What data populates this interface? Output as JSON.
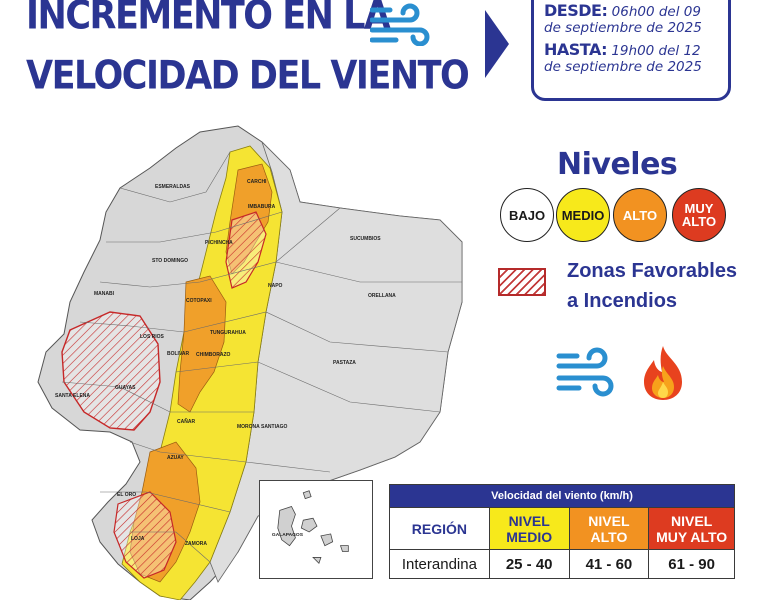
{
  "header": {
    "title_line1": "INCREMENTO EN LA",
    "title_line2": "VELOCIDAD DEL VIENTO",
    "title_icon": "wind-icon"
  },
  "validity": {
    "from_label": "DESDE:",
    "from_value_1": " 06h00 del 09",
    "from_value_2": "de septiembre de 2025",
    "to_label": "HASTA:",
    "to_value_1": " 19h00 del 12",
    "to_value_2": "de septiembre de 2025"
  },
  "legend": {
    "title": "Niveles",
    "levels": [
      {
        "label": "BAJO",
        "color": "#ffffff"
      },
      {
        "label": "MEDIO",
        "color": "#f7e91b"
      },
      {
        "label": "ALTO",
        "color": "#f29221"
      },
      {
        "label": "MUY ALTO",
        "color": "#dd3b20"
      }
    ],
    "fire_zones_line1": "Zonas Favorables",
    "fire_zones_line2": "a Incendios",
    "icons": [
      "wind-icon",
      "fire-icon"
    ]
  },
  "map": {
    "provinces": [
      "CARCHI",
      "IMBABURA",
      "ESMERALDAS",
      "PICHINCHA",
      "STO DOMINGO",
      "SUCUMBIOS",
      "NAPO",
      "ORELLANA",
      "MANABI",
      "COTOPAXI",
      "LOS RIOS",
      "TUNGURAHUA",
      "PASTAZA",
      "BOLIVAR",
      "CHIMBORAZO",
      "GUAYAS",
      "SANTA ELENA",
      "CAÑAR",
      "MORONA SANTIAGO",
      "AZUAY",
      "EL ORO",
      "LOJA",
      "ZAMORA"
    ],
    "inset_label": "GALAPAGOS"
  },
  "table": {
    "header": "Velocidad del viento  (km/h)",
    "col_region": "REGIÓN",
    "col_medio_1": "NIVEL",
    "col_medio_2": "MEDIO",
    "col_alto_1": "NIVEL",
    "col_alto_2": "ALTO",
    "col_muy_1": "NIVEL",
    "col_muy_2": "MUY ALTO",
    "row_region": "Interandina",
    "row_medio": "25 - 40",
    "row_alto": "41 - 60",
    "row_muy": "61 - 90"
  }
}
